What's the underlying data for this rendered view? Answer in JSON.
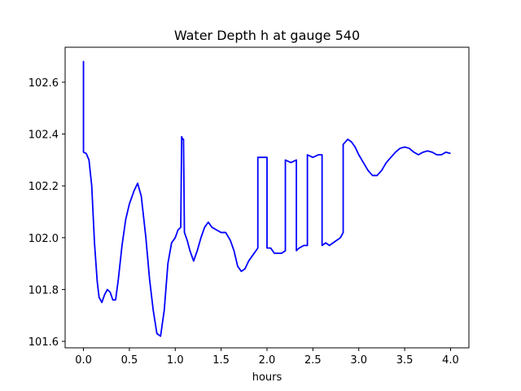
{
  "chart_data": {
    "type": "line",
    "title": "Water Depth h at gauge 540",
    "xlabel": "hours",
    "ylabel": "",
    "xlim": [
      -0.2,
      4.2
    ],
    "ylim": [
      101.575,
      102.735
    ],
    "xticks": [
      0.0,
      0.5,
      1.0,
      1.5,
      2.0,
      2.5,
      3.0,
      3.5,
      4.0
    ],
    "xtick_labels": [
      "0.0",
      "0.5",
      "1.0",
      "1.5",
      "2.0",
      "2.5",
      "3.0",
      "3.5",
      "4.0"
    ],
    "yticks": [
      101.6,
      101.8,
      102.0,
      102.2,
      102.4,
      102.6
    ],
    "ytick_labels": [
      "101.6",
      "101.8",
      "102.0",
      "102.2",
      "102.4",
      "102.6"
    ],
    "grid": false,
    "line_color": "#0000ff",
    "series": [
      {
        "x": [
          0.0,
          0.0,
          0.0,
          0.03,
          0.06,
          0.09,
          0.12,
          0.15,
          0.17,
          0.2,
          0.23,
          0.26,
          0.29,
          0.32,
          0.35,
          0.38,
          0.42,
          0.46,
          0.5,
          0.55,
          0.59,
          0.63,
          0.68,
          0.72,
          0.76,
          0.8,
          0.84,
          0.88,
          0.92,
          0.96,
          1.0,
          1.03,
          1.06,
          1.07,
          1.08,
          1.09,
          1.1,
          1.13,
          1.16,
          1.2,
          1.24,
          1.28,
          1.32,
          1.36,
          1.4,
          1.45,
          1.5,
          1.55,
          1.6,
          1.64,
          1.68,
          1.72,
          1.76,
          1.8,
          1.84,
          1.88,
          1.9,
          1.9,
          1.95,
          2.0,
          2.0,
          2.04,
          2.08,
          2.12,
          2.16,
          2.2,
          2.2,
          2.26,
          2.32,
          2.32,
          2.35,
          2.4,
          2.44,
          2.44,
          2.5,
          2.56,
          2.6,
          2.6,
          2.64,
          2.68,
          2.72,
          2.76,
          2.8,
          2.83,
          2.83,
          2.88,
          2.92,
          2.96,
          3.0,
          3.05,
          3.1,
          3.15,
          3.2,
          3.25,
          3.3,
          3.35,
          3.4,
          3.45,
          3.5,
          3.55,
          3.6,
          3.65,
          3.7,
          3.75,
          3.8,
          3.85,
          3.9,
          3.95,
          4.0
        ],
        "y": [
          102.33,
          102.68,
          102.33,
          102.325,
          102.3,
          102.2,
          101.98,
          101.83,
          101.77,
          101.75,
          101.78,
          101.8,
          101.79,
          101.76,
          101.76,
          101.84,
          101.97,
          102.07,
          102.13,
          102.18,
          102.21,
          102.16,
          102.0,
          101.84,
          101.72,
          101.63,
          101.62,
          101.72,
          101.9,
          101.98,
          102.0,
          102.03,
          102.04,
          102.39,
          102.38,
          102.38,
          102.02,
          101.99,
          101.95,
          101.91,
          101.95,
          102.0,
          102.04,
          102.06,
          102.04,
          102.03,
          102.02,
          102.02,
          101.99,
          101.95,
          101.89,
          101.87,
          101.88,
          101.91,
          101.93,
          101.95,
          101.96,
          102.31,
          102.31,
          102.31,
          101.96,
          101.96,
          101.94,
          101.94,
          101.94,
          101.95,
          102.3,
          102.29,
          102.3,
          101.95,
          101.96,
          101.97,
          101.97,
          102.32,
          102.31,
          102.32,
          102.32,
          101.97,
          101.98,
          101.97,
          101.98,
          101.99,
          102.0,
          102.02,
          102.36,
          102.38,
          102.37,
          102.35,
          102.32,
          102.29,
          102.26,
          102.24,
          102.24,
          102.26,
          102.29,
          102.31,
          102.33,
          102.345,
          102.35,
          102.345,
          102.33,
          102.32,
          102.33,
          102.335,
          102.33,
          102.32,
          102.32,
          102.33,
          102.325
        ]
      }
    ]
  }
}
